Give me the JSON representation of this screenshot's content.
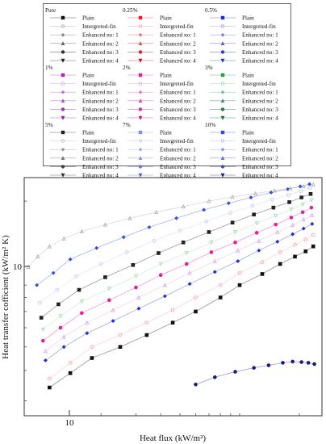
{
  "legend": {
    "groups": [
      {
        "title": "Pure",
        "items": [
          "Plain",
          "Intergreted-fin",
          "Enhanced no: 1",
          "Enhanced no: 2",
          "Enhanced no: 3",
          "Enhanced no: 4"
        ]
      },
      {
        "title": "0.25%",
        "items": [
          "Plain",
          "Intergreted-fin",
          "Enhanced no: 1",
          "Enhanced no: 2",
          "Enhanced no: 3",
          "Enhanced no: 4"
        ]
      },
      {
        "title": "0.5%",
        "items": [
          "Plain",
          "Intergreted-fin",
          "Enhanced no: 1",
          "Enhanced no: 2",
          "Enhanced no: 3",
          "Enhanced no: 4"
        ]
      },
      {
        "title": "1%",
        "items": [
          "Plain",
          "Intergreted-fin",
          "Enhanced no: 1",
          "Enhanced no: 2",
          "Enhanced no: 3",
          "Enhanced no: 4"
        ]
      },
      {
        "title": "2%",
        "items": [
          "Plain",
          "Intergreted-fin",
          "Enhanced no: 1",
          "Enhanced no: 2",
          "Enhanced no: 3",
          "Enhanced no: 4"
        ]
      },
      {
        "title": "3%",
        "items": [
          "Plain",
          "Intergreted-fin",
          "Enhanced no: 1",
          "Enhanced no: 2",
          "Enhanced no: 3",
          "Enhanced no: 4"
        ]
      },
      {
        "title": "5%",
        "items": [
          "Plain",
          "Intergreted-fin",
          "Enhanced no: 1",
          "Enhanced no: 2",
          "Enhanced no: 3",
          "Enhanced no: 4"
        ]
      },
      {
        "title": "7%",
        "items": [
          "Plain",
          "Intergreted-fin",
          "Enhanced no: 1",
          "Enhanced no: 2",
          "Enhanced no: 3",
          "Enhanced no: 4"
        ]
      },
      {
        "title": "10%",
        "items": [
          "Plain",
          "Intergreted-fin",
          "Enhanced no: 1",
          "Enhanced no: 2",
          "Enhanced no: 3",
          "Enhanced no: 4"
        ]
      }
    ],
    "colors": [
      [
        "#111111",
        "#aaaaaa",
        "#888888",
        "#666666",
        "#333333",
        "#222222"
      ],
      [
        "#e8202a",
        "#f4a0a8",
        "#f07080",
        "#e84858",
        "#d02030",
        "#c01020"
      ],
      [
        "#2030d0",
        "#9aa0f0",
        "#7880e8",
        "#5060e0",
        "#3040d0",
        "#2030b0"
      ],
      [
        "#b020c0",
        "#d8a0e8",
        "#c070e0",
        "#b050d0",
        "#a030c0",
        "#8820b0"
      ],
      [
        "#e0209a",
        "#f0a0d0",
        "#e878c0",
        "#e050b0",
        "#d030a0",
        "#c01890"
      ],
      [
        "#20a040",
        "#a0d8b0",
        "#70c090",
        "#409060",
        "#208040",
        "#107030"
      ],
      [
        "#222222",
        "#bbbbbb",
        "#999999",
        "#777777",
        "#444444",
        "#333333"
      ],
      [
        "#8090e0",
        "#c0c8f0",
        "#a0a8e8",
        "#8890e0",
        "#7078d8",
        "#5860d0"
      ],
      [
        "#3050e0",
        "#b0b8f8",
        "#8890f0",
        "#6070e8",
        "#4050d8",
        "#1a1a80"
      ]
    ]
  },
  "chart_data": {
    "type": "scatter",
    "title": "",
    "xlabel": "Heat flux (kW/m²)",
    "ylabel": "Heat transfer cofficient (kW/m² K)",
    "x_scale": "log",
    "y_scale": "log",
    "xlim": [
      8.2,
      260
    ],
    "ylim": [
      2.6,
      25
    ],
    "x_tick_label": "10",
    "y_tick_label": "10",
    "grid": false,
    "series": [
      {
        "name": "Pure Plain",
        "x": [
          11,
          14,
          18,
          25,
          34,
          46,
          60,
          80,
          100,
          130,
          160,
          190,
          215,
          235
        ],
        "y": [
          3.4,
          3.9,
          4.5,
          5.0,
          5.6,
          6.3,
          7.0,
          8.0,
          9.0,
          10.0,
          11.0,
          11.8,
          12.4,
          13.0
        ]
      },
      {
        "name": "Pure Intergreted-fin",
        "x": [
          11,
          14,
          18,
          25,
          34,
          46,
          60,
          80,
          100,
          130,
          160,
          190,
          215,
          235
        ],
        "y": [
          3.7,
          4.3,
          5.0,
          5.6,
          6.3,
          7.1,
          8.0,
          9.0,
          10.1,
          11.2,
          12.3,
          13.2,
          13.9,
          14.5
        ]
      },
      {
        "name": "0.25% Plain",
        "x": [
          10.5,
          13,
          17,
          23,
          31,
          42,
          56,
          75,
          98,
          125,
          155,
          185,
          210,
          232
        ],
        "y": [
          4.4,
          5.0,
          5.7,
          6.4,
          7.2,
          8.1,
          9.1,
          10.2,
          11.3,
          12.5,
          13.6,
          14.6,
          15.4,
          16.1
        ]
      },
      {
        "name": "0.5% Plain",
        "x": [
          10.5,
          13,
          17,
          23,
          31,
          42,
          56,
          75,
          98,
          125,
          155,
          185,
          210,
          232
        ],
        "y": [
          4.8,
          5.5,
          6.3,
          7.1,
          8.0,
          9.0,
          10.1,
          11.3,
          12.5,
          13.7,
          14.9,
          15.9,
          16.8,
          17.5
        ]
      },
      {
        "name": "1% Plain",
        "x": [
          10.2,
          12.5,
          16,
          22,
          30,
          40,
          54,
          72,
          95,
          122,
          152,
          182,
          208,
          230
        ],
        "y": [
          5.3,
          6.0,
          6.9,
          7.8,
          8.8,
          9.9,
          11.0,
          12.3,
          13.5,
          14.8,
          16.0,
          17.1,
          18.0,
          18.8
        ]
      },
      {
        "name": "2% Plain",
        "x": [
          10.2,
          12.5,
          16,
          22,
          30,
          40,
          54,
          72,
          95,
          122,
          152,
          182,
          208,
          230
        ],
        "y": [
          5.9,
          6.7,
          7.7,
          8.7,
          9.8,
          11.0,
          12.2,
          13.5,
          14.9,
          16.2,
          17.4,
          18.5,
          19.4,
          20.2
        ]
      },
      {
        "name": "3% Plain",
        "x": [
          10.0,
          12.2,
          15.5,
          21,
          29,
          39,
          52,
          70,
          92,
          118,
          148,
          178,
          205,
          228
        ],
        "y": [
          6.6,
          7.5,
          8.6,
          9.7,
          10.9,
          12.2,
          13.5,
          14.9,
          16.3,
          17.6,
          18.8,
          19.8,
          20.7,
          21.4
        ]
      },
      {
        "name": "5% Plain",
        "x": [
          9.8,
          12,
          15,
          20,
          27,
          37,
          50,
          68,
          90,
          116,
          146,
          176,
          203,
          226
        ],
        "y": [
          7.6,
          8.6,
          9.8,
          11.0,
          12.3,
          13.7,
          15.1,
          16.5,
          17.9,
          19.1,
          20.3,
          21.2,
          22.0,
          22.7
        ]
      },
      {
        "name": "7% Plain",
        "x": [
          9.5,
          11.5,
          14,
          19,
          26,
          35,
          48,
          66,
          88,
          114,
          144,
          175,
          202,
          225
        ],
        "y": [
          9.0,
          10.1,
          11.5,
          12.8,
          14.2,
          15.6,
          17.0,
          18.4,
          19.6,
          20.7,
          21.7,
          22.4,
          23.0,
          23.5
        ]
      },
      {
        "name": "10% Plain",
        "x": [
          8.6,
          9.6,
          11,
          13,
          16,
          21,
          28,
          38,
          52,
          70,
          92,
          120,
          150,
          180,
          210,
          235
        ],
        "y": [
          10.7,
          11.8,
          13.0,
          14.0,
          15.0,
          16.0,
          17.0,
          18.0,
          19.0,
          20.0,
          20.8,
          21.5,
          22.1,
          22.6,
          23.0,
          23.4
        ]
      },
      {
        "name": "10% Enhanced no: 4",
        "x": [
          60,
          75,
          95,
          118,
          140,
          165,
          185,
          205,
          222,
          238
        ],
        "y": [
          3.5,
          3.75,
          3.95,
          4.1,
          4.2,
          4.3,
          4.35,
          4.33,
          4.3,
          4.25
        ]
      }
    ]
  }
}
